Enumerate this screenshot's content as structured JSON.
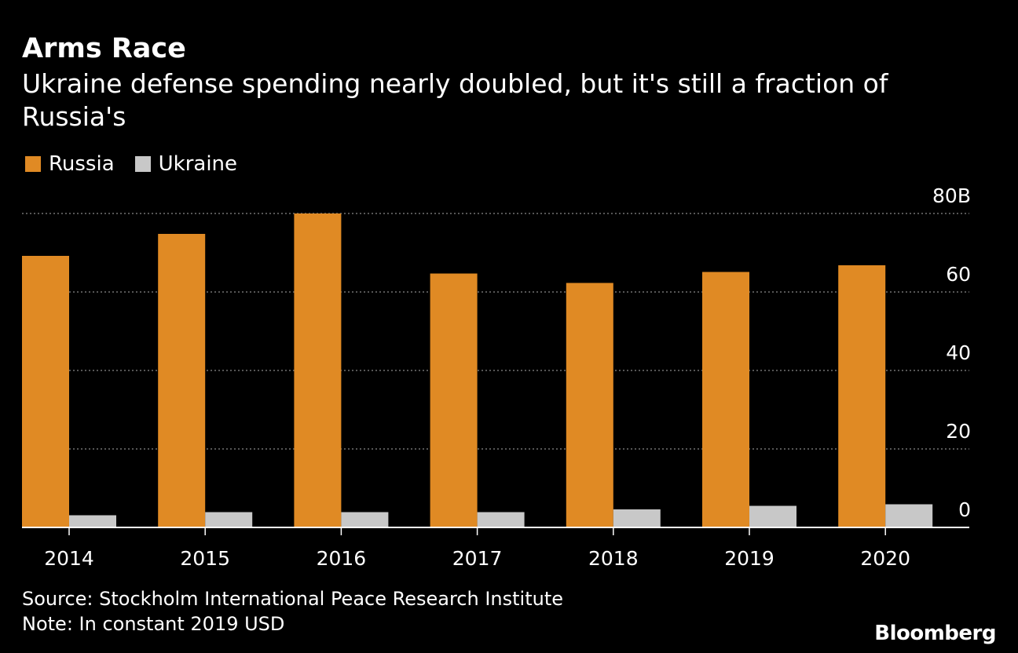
{
  "header": {
    "title": "Arms Race",
    "subtitle": "Ukraine defense spending nearly doubled, but it's still a fraction of Russia's"
  },
  "legend": [
    {
      "name": "Russia",
      "color": "#E08A24"
    },
    {
      "name": "Ukraine",
      "color": "#C8C8C8"
    }
  ],
  "footer": {
    "source": "Source: Stockholm International Peace Research Institute",
    "note": "Note: In constant 2019 USD",
    "brand": "Bloomberg"
  },
  "chart_data": {
    "type": "bar",
    "categories": [
      "2014",
      "2015",
      "2016",
      "2017",
      "2018",
      "2019",
      "2020"
    ],
    "series": [
      {
        "name": "Russia",
        "color": "#E08A24",
        "values": [
          69.2,
          74.8,
          80.0,
          64.7,
          62.3,
          65.1,
          66.8
        ]
      },
      {
        "name": "Ukraine",
        "color": "#C8C8C8",
        "values": [
          3.1,
          3.9,
          3.9,
          3.9,
          4.6,
          5.5,
          5.9
        ]
      }
    ],
    "y_ticks": [
      {
        "value": 0,
        "label": "0"
      },
      {
        "value": 20,
        "label": "20"
      },
      {
        "value": 40,
        "label": "40"
      },
      {
        "value": 60,
        "label": "60"
      },
      {
        "value": 80,
        "label": "80B"
      }
    ],
    "ylim": [
      0,
      80
    ],
    "grid": true,
    "legend_position": "top-left"
  }
}
